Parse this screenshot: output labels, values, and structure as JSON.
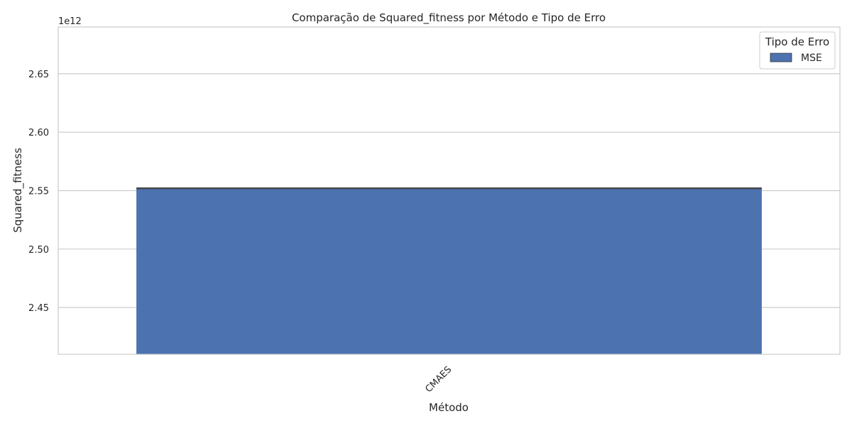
{
  "chart_data": {
    "type": "bar",
    "title": "Comparação de Squared_fitness por Método e Tipo de Erro",
    "xlabel": "Método",
    "ylabel": "Squared_fitness",
    "offset_label": "1e12",
    "scale": 1000000000000.0,
    "categories": [
      "CMAES"
    ],
    "series": [
      {
        "name": "MSE",
        "values": [
          2552000000000.0
        ],
        "color": "#4c72b0"
      }
    ],
    "ylim": [
      2410000000000.0,
      2690000000000.0
    ],
    "yticks": [
      2.45,
      2.5,
      2.55,
      2.6,
      2.65
    ],
    "ytick_labels": [
      "2.45",
      "2.50",
      "2.55",
      "2.60",
      "2.65"
    ],
    "grid": true,
    "legend": {
      "title": "Tipo de Erro",
      "position": "top-right"
    },
    "colors": {
      "grid": "#cccccc",
      "spine": "#cccccc",
      "text": "#262626",
      "errbar": "#444444"
    }
  }
}
